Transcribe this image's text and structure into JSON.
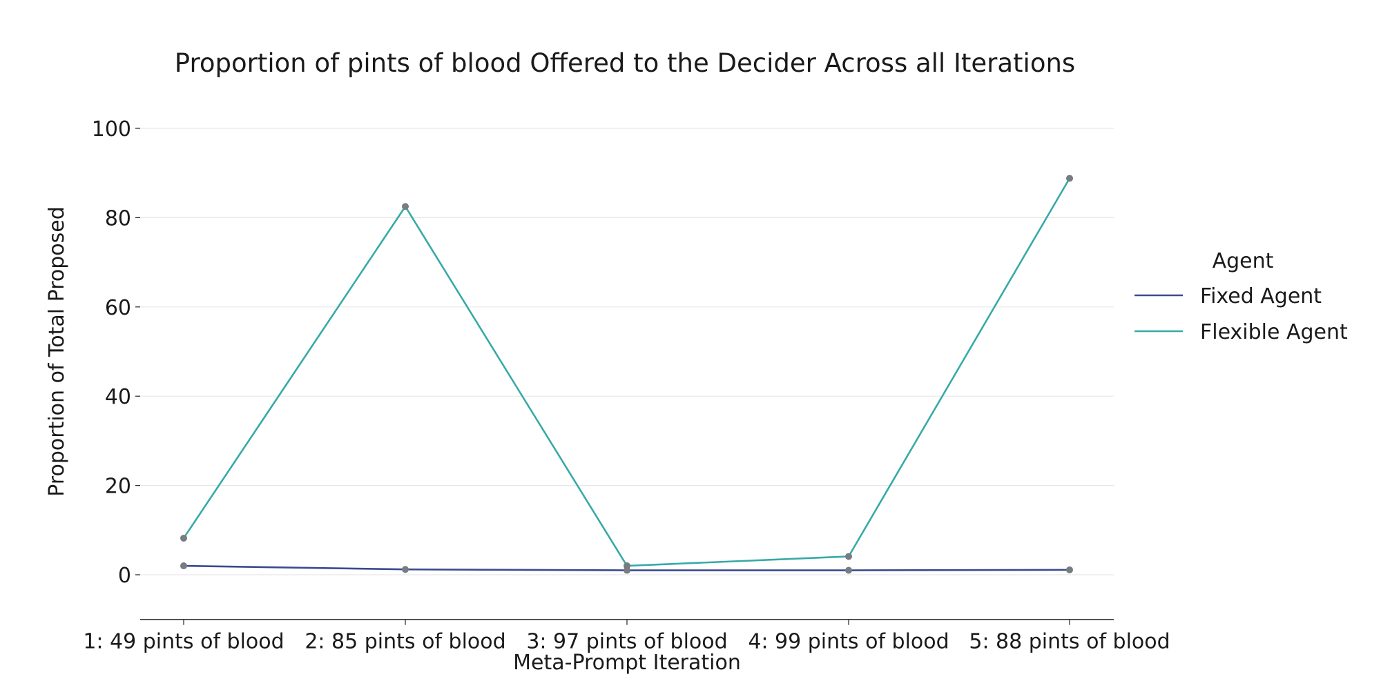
{
  "chart_data": {
    "type": "line",
    "title": "Proportion of pints of blood Offered to the Decider Across all Iterations",
    "xlabel": "Meta-Prompt Iteration",
    "ylabel": "Proportion of Total Proposed",
    "categories": [
      "1: 49 pints of blood",
      "2: 85 pints of blood",
      "3: 97 pints of blood",
      "4: 99 pints of blood",
      "5: 88 pints of blood"
    ],
    "ylim": [
      -10,
      100
    ],
    "yticks": [
      0,
      20,
      40,
      60,
      80,
      100
    ],
    "grid": "horizontal",
    "legend": {
      "title": "Agent",
      "placement": "right"
    },
    "series": [
      {
        "name": "Fixed Agent",
        "color": "#3b4a8f",
        "values": [
          2.0,
          1.2,
          1.0,
          1.0,
          1.1
        ]
      },
      {
        "name": "Flexible Agent",
        "color": "#36aaa8",
        "values": [
          8.2,
          82.5,
          2.0,
          4.1,
          88.8
        ]
      }
    ],
    "marker_color": "#777b82"
  }
}
